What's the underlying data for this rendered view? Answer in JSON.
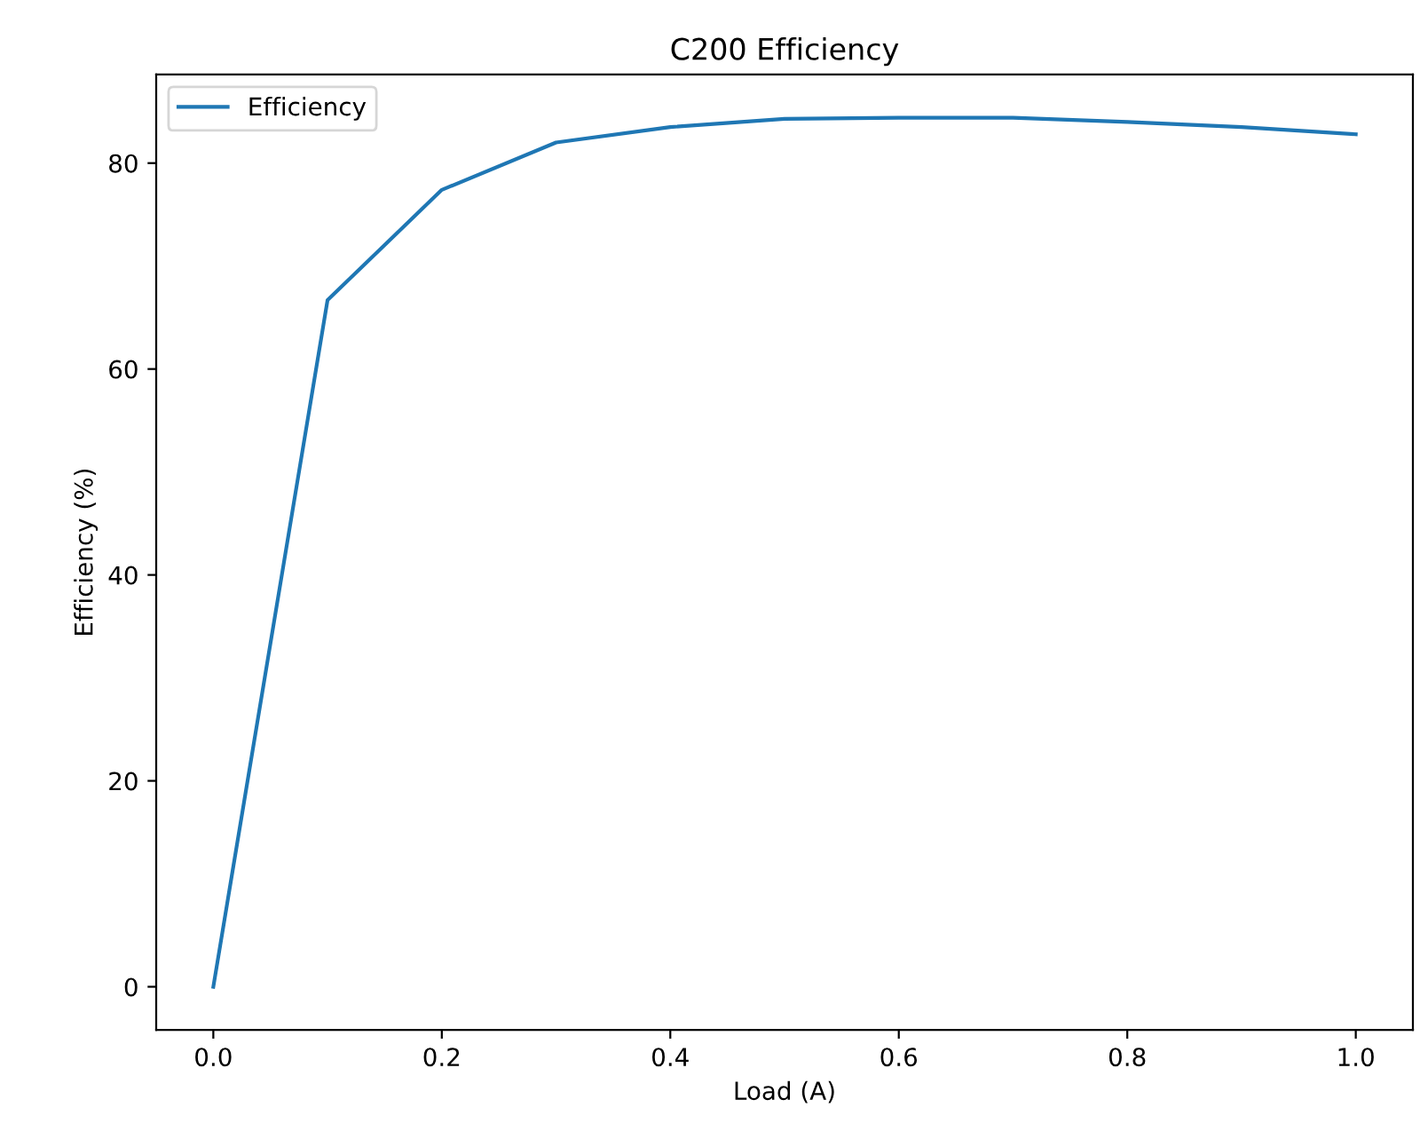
{
  "chart_data": {
    "type": "line",
    "title": "C200 Efficiency",
    "xlabel": "Load (A)",
    "ylabel": "Efficiency (%)",
    "x": [
      0.0,
      0.1,
      0.2,
      0.3,
      0.4,
      0.5,
      0.6,
      0.7,
      0.8,
      0.9,
      1.0
    ],
    "series": [
      {
        "name": "Efficiency",
        "color": "#1f77b4",
        "values": [
          0,
          66.7,
          77.4,
          82.0,
          83.5,
          84.3,
          84.4,
          84.4,
          84.0,
          83.5,
          82.8
        ]
      }
    ],
    "xlim": [
      -0.05,
      1.05
    ],
    "ylim": [
      -4.2,
      88.6
    ],
    "xticks": [
      {
        "value": 0.0,
        "label": "0.0"
      },
      {
        "value": 0.2,
        "label": "0.2"
      },
      {
        "value": 0.4,
        "label": "0.4"
      },
      {
        "value": 0.6,
        "label": "0.6"
      },
      {
        "value": 0.8,
        "label": "0.8"
      },
      {
        "value": 1.0,
        "label": "1.0"
      }
    ],
    "yticks": [
      0,
      20,
      40,
      60,
      80
    ],
    "legend": "top left",
    "grid": false
  }
}
